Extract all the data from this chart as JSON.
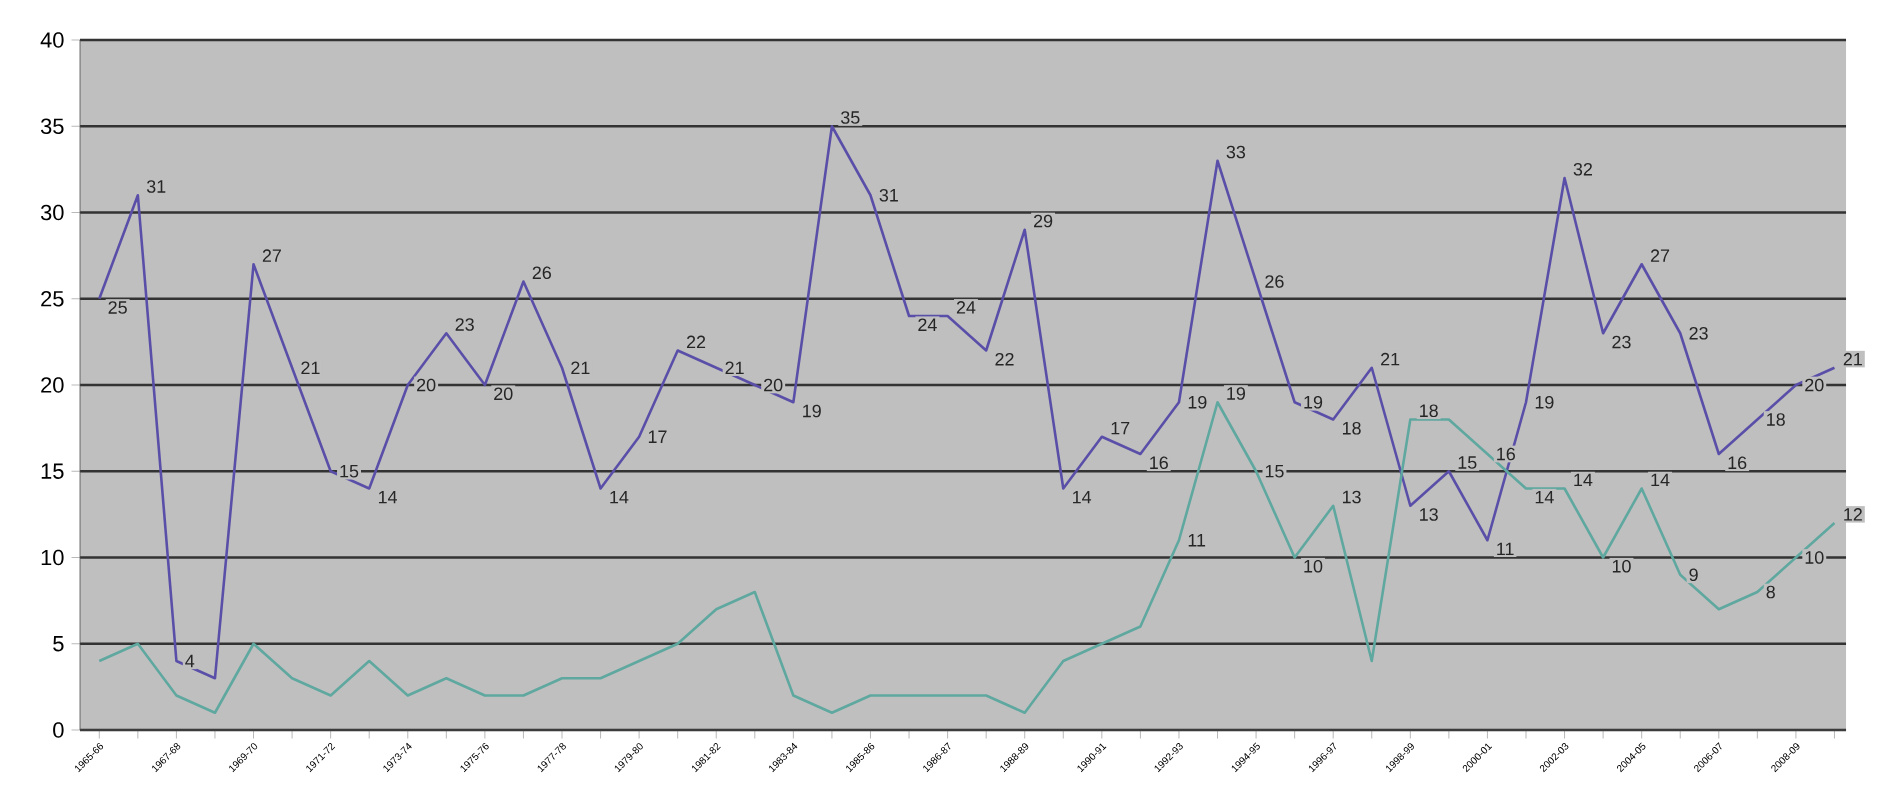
{
  "chart_data": {
    "type": "line",
    "categories": [
      "1965-66",
      null,
      "1967-68",
      null,
      "1969-70",
      null,
      "1971-72",
      null,
      "1973-74",
      null,
      "1975-76",
      null,
      "1977-78",
      null,
      "1979-80",
      null,
      "1981-82",
      null,
      "1983-84",
      null,
      "1985-86",
      null,
      "1986-87",
      null,
      "1988-89",
      null,
      "1990-91",
      null,
      "1992-93",
      null,
      "1994-95",
      null,
      "1996-97",
      null,
      "1998-99",
      null,
      "2000-01",
      null,
      "2002-03",
      null,
      "2004-05",
      null,
      "2006-07",
      null,
      "2008-09",
      null
    ],
    "series": [
      {
        "color": "#5a4fa8",
        "values": [
          25,
          31,
          4,
          3,
          27,
          21,
          15,
          14,
          20,
          23,
          20,
          26,
          21,
          14,
          17,
          22,
          21,
          20,
          19,
          35,
          31,
          24,
          24,
          22,
          29,
          14,
          17,
          16,
          19,
          33,
          26,
          19,
          18,
          21,
          13,
          15,
          11,
          19,
          32,
          23,
          27,
          23,
          16,
          18,
          20,
          21
        ],
        "value_labels": [
          "25",
          "31",
          "4",
          null,
          "27",
          "21",
          "15",
          "14",
          "20",
          "23",
          "20",
          "26",
          "21",
          "14",
          "17",
          "22",
          "21",
          "20",
          "19",
          "35",
          "31",
          "24",
          "24",
          "22",
          "29",
          "14",
          "17",
          "16",
          "19",
          "33",
          "26",
          "19",
          "18",
          "21",
          "13",
          "15",
          "11",
          "19",
          "32",
          "23",
          "27",
          "23",
          "16",
          "18",
          "20",
          "21"
        ]
      },
      {
        "color": "#5fa8a0",
        "values": [
          4,
          5,
          2,
          1,
          5,
          3,
          2,
          4,
          2,
          3,
          2,
          2,
          3,
          3,
          4,
          5,
          7,
          8,
          2,
          1,
          2,
          2,
          2,
          2,
          1,
          4,
          5,
          6,
          11,
          19,
          15,
          10,
          13,
          4,
          18,
          18,
          16,
          14,
          14,
          10,
          14,
          9,
          7,
          8,
          10,
          12
        ],
        "value_labels": [
          null,
          null,
          null,
          null,
          null,
          null,
          null,
          null,
          null,
          null,
          null,
          null,
          null,
          null,
          null,
          null,
          null,
          null,
          null,
          null,
          null,
          null,
          null,
          null,
          null,
          null,
          null,
          null,
          "11",
          "19",
          "15",
          "10",
          "13",
          null,
          "18",
          null,
          "16",
          "14",
          "14",
          "10",
          "14",
          "9",
          null,
          "8",
          "10",
          "12"
        ]
      }
    ],
    "ylim": [
      0,
      40
    ],
    "yticks": [
      0,
      5,
      10,
      15,
      20,
      25,
      30,
      35,
      40
    ],
    "grid": "y"
  }
}
